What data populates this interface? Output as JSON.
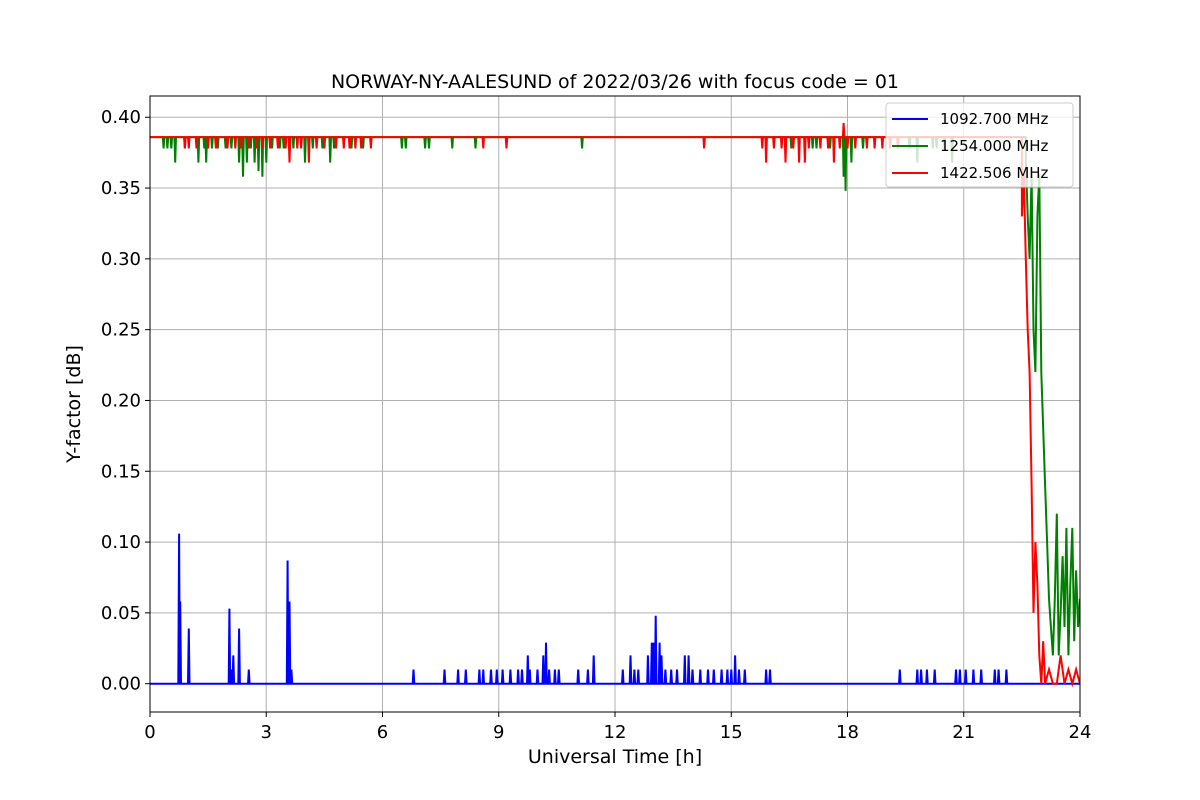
{
  "chart_data": {
    "type": "line",
    "title": "NORWAY-NY-AALESUND of 2022/03/26 with focus code = 01",
    "xlabel": "Universal Time [h]",
    "ylabel": "Y-factor [dB]",
    "xlim": [
      0,
      24
    ],
    "ylim": [
      -0.02,
      0.415
    ],
    "xticks": [
      0,
      3,
      6,
      9,
      12,
      15,
      18,
      21,
      24
    ],
    "xtick_labels": [
      "0",
      "3",
      "6",
      "9",
      "12",
      "15",
      "18",
      "21",
      "24"
    ],
    "yticks": [
      0.0,
      0.05,
      0.1,
      0.15,
      0.2,
      0.25,
      0.3,
      0.35,
      0.4
    ],
    "ytick_labels": [
      "0.00",
      "0.05",
      "0.10",
      "0.15",
      "0.20",
      "0.25",
      "0.30",
      "0.35",
      "0.40"
    ],
    "grid": true,
    "legend_position": "top-right",
    "series": [
      {
        "name": "1092.700 MHz",
        "color": "#0000ff",
        "baseline": 0.0,
        "spikes": [
          [
            0.75,
            0.106
          ],
          [
            0.78,
            0.058
          ],
          [
            1.0,
            0.039
          ],
          [
            2.05,
            0.053
          ],
          [
            2.1,
            0.01
          ],
          [
            2.15,
            0.02
          ],
          [
            2.3,
            0.039
          ],
          [
            2.55,
            0.01
          ],
          [
            3.55,
            0.087
          ],
          [
            3.6,
            0.058
          ],
          [
            3.65,
            0.01
          ],
          [
            6.8,
            0.01
          ],
          [
            7.6,
            0.01
          ],
          [
            7.95,
            0.01
          ],
          [
            8.15,
            0.01
          ],
          [
            8.5,
            0.01
          ],
          [
            8.6,
            0.01
          ],
          [
            8.8,
            0.01
          ],
          [
            8.95,
            0.01
          ],
          [
            9.1,
            0.01
          ],
          [
            9.3,
            0.01
          ],
          [
            9.5,
            0.01
          ],
          [
            9.6,
            0.01
          ],
          [
            9.75,
            0.02
          ],
          [
            9.8,
            0.01
          ],
          [
            10.0,
            0.01
          ],
          [
            10.15,
            0.02
          ],
          [
            10.22,
            0.029
          ],
          [
            10.3,
            0.01
          ],
          [
            10.45,
            0.01
          ],
          [
            10.55,
            0.01
          ],
          [
            11.05,
            0.01
          ],
          [
            11.3,
            0.01
          ],
          [
            11.45,
            0.02
          ],
          [
            12.2,
            0.01
          ],
          [
            12.4,
            0.02
          ],
          [
            12.5,
            0.01
          ],
          [
            12.6,
            0.01
          ],
          [
            12.85,
            0.02
          ],
          [
            12.95,
            0.029
          ],
          [
            13.0,
            0.029
          ],
          [
            13.05,
            0.048
          ],
          [
            13.15,
            0.029
          ],
          [
            13.2,
            0.02
          ],
          [
            13.3,
            0.01
          ],
          [
            13.45,
            0.01
          ],
          [
            13.6,
            0.01
          ],
          [
            13.8,
            0.02
          ],
          [
            13.9,
            0.02
          ],
          [
            14.0,
            0.01
          ],
          [
            14.2,
            0.01
          ],
          [
            14.4,
            0.01
          ],
          [
            14.55,
            0.01
          ],
          [
            14.75,
            0.01
          ],
          [
            14.9,
            0.01
          ],
          [
            15.0,
            0.01
          ],
          [
            15.1,
            0.02
          ],
          [
            15.2,
            0.01
          ],
          [
            15.35,
            0.01
          ],
          [
            15.9,
            0.01
          ],
          [
            16.0,
            0.01
          ],
          [
            19.35,
            0.01
          ],
          [
            19.8,
            0.01
          ],
          [
            19.9,
            0.01
          ],
          [
            20.05,
            0.01
          ],
          [
            20.25,
            0.01
          ],
          [
            20.8,
            0.01
          ],
          [
            20.9,
            0.01
          ],
          [
            21.05,
            0.01
          ],
          [
            21.25,
            0.01
          ],
          [
            21.45,
            0.01
          ],
          [
            21.8,
            0.01
          ],
          [
            21.9,
            0.01
          ],
          [
            22.1,
            0.01
          ]
        ],
        "noise": []
      },
      {
        "name": "1254.000 MHz",
        "color": "#008000",
        "baseline": 0.386,
        "spikes": [
          [
            0.35,
            0.378
          ],
          [
            0.45,
            0.378
          ],
          [
            0.55,
            0.378
          ],
          [
            0.65,
            0.368
          ],
          [
            0.9,
            0.378
          ],
          [
            1.25,
            0.368
          ],
          [
            1.4,
            0.378
          ],
          [
            1.45,
            0.368
          ],
          [
            1.6,
            0.378
          ],
          [
            1.75,
            0.378
          ],
          [
            1.95,
            0.378
          ],
          [
            2.1,
            0.378
          ],
          [
            2.3,
            0.368
          ],
          [
            2.4,
            0.358
          ],
          [
            2.5,
            0.368
          ],
          [
            2.6,
            0.378
          ],
          [
            2.7,
            0.368
          ],
          [
            2.8,
            0.362
          ],
          [
            2.9,
            0.358
          ],
          [
            3.0,
            0.368
          ],
          [
            3.15,
            0.378
          ],
          [
            3.35,
            0.378
          ],
          [
            3.45,
            0.378
          ],
          [
            3.7,
            0.378
          ],
          [
            4.0,
            0.368
          ],
          [
            4.2,
            0.378
          ],
          [
            4.45,
            0.378
          ],
          [
            4.65,
            0.368
          ],
          [
            4.75,
            0.378
          ],
          [
            5.2,
            0.378
          ],
          [
            5.5,
            0.378
          ],
          [
            6.5,
            0.378
          ],
          [
            6.6,
            0.378
          ],
          [
            7.1,
            0.378
          ],
          [
            7.2,
            0.378
          ],
          [
            7.8,
            0.378
          ],
          [
            8.4,
            0.378
          ],
          [
            11.15,
            0.378
          ],
          [
            16.55,
            0.378
          ],
          [
            17.1,
            0.378
          ],
          [
            17.2,
            0.378
          ],
          [
            17.55,
            0.378
          ],
          [
            17.9,
            0.358
          ],
          [
            17.95,
            0.348
          ],
          [
            18.1,
            0.368
          ],
          [
            18.4,
            0.378
          ],
          [
            19.6,
            0.378
          ],
          [
            19.8,
            0.368
          ],
          [
            20.2,
            0.378
          ],
          [
            20.3,
            0.378
          ],
          [
            20.5,
            0.378
          ],
          [
            20.7,
            0.368
          ]
        ],
        "noise": [
          [
            22.6,
            0.37
          ],
          [
            22.65,
            0.33
          ],
          [
            22.7,
            0.3
          ],
          [
            22.75,
            0.36
          ],
          [
            22.8,
            0.25
          ],
          [
            22.85,
            0.22
          ],
          [
            22.9,
            0.33
          ],
          [
            22.95,
            0.36
          ],
          [
            23.0,
            0.22
          ],
          [
            23.05,
            0.18
          ],
          [
            23.1,
            0.14
          ],
          [
            23.15,
            0.1
          ],
          [
            23.2,
            0.06
          ],
          [
            23.25,
            0.04
          ],
          [
            23.3,
            0.02
          ],
          [
            23.35,
            0.06
          ],
          [
            23.4,
            0.12
          ],
          [
            23.45,
            0.02
          ],
          [
            23.5,
            0.05
          ],
          [
            23.55,
            0.09
          ],
          [
            23.6,
            0.04
          ],
          [
            23.65,
            0.11
          ],
          [
            23.7,
            0.02
          ],
          [
            23.75,
            0.07
          ],
          [
            23.8,
            0.11
          ],
          [
            23.85,
            0.03
          ],
          [
            23.9,
            0.08
          ],
          [
            23.95,
            0.04
          ],
          [
            24.0,
            0.06
          ]
        ]
      },
      {
        "name": "1422.506 MHz",
        "color": "#ff0000",
        "baseline": 0.386,
        "spikes": [
          [
            0.9,
            0.378
          ],
          [
            1.0,
            0.378
          ],
          [
            1.2,
            0.378
          ],
          [
            1.5,
            0.378
          ],
          [
            1.7,
            0.378
          ],
          [
            2.0,
            0.378
          ],
          [
            2.2,
            0.378
          ],
          [
            2.35,
            0.378
          ],
          [
            2.55,
            0.378
          ],
          [
            2.75,
            0.378
          ],
          [
            2.9,
            0.378
          ],
          [
            3.1,
            0.378
          ],
          [
            3.3,
            0.378
          ],
          [
            3.5,
            0.378
          ],
          [
            3.6,
            0.368
          ],
          [
            3.8,
            0.378
          ],
          [
            3.9,
            0.378
          ],
          [
            4.1,
            0.368
          ],
          [
            4.3,
            0.378
          ],
          [
            4.5,
            0.378
          ],
          [
            4.8,
            0.378
          ],
          [
            5.0,
            0.378
          ],
          [
            5.15,
            0.378
          ],
          [
            5.3,
            0.378
          ],
          [
            5.45,
            0.378
          ],
          [
            5.7,
            0.378
          ],
          [
            8.6,
            0.378
          ],
          [
            9.2,
            0.378
          ],
          [
            14.3,
            0.378
          ],
          [
            15.8,
            0.378
          ],
          [
            15.9,
            0.368
          ],
          [
            16.1,
            0.378
          ],
          [
            16.3,
            0.378
          ],
          [
            16.4,
            0.368
          ],
          [
            16.6,
            0.378
          ],
          [
            16.75,
            0.368
          ],
          [
            16.9,
            0.368
          ],
          [
            17.0,
            0.378
          ],
          [
            17.3,
            0.378
          ],
          [
            17.5,
            0.378
          ],
          [
            17.65,
            0.368
          ],
          [
            17.8,
            0.378
          ],
          [
            17.9,
            0.396
          ],
          [
            18.0,
            0.378
          ],
          [
            18.2,
            0.378
          ],
          [
            18.5,
            0.378
          ],
          [
            18.7,
            0.378
          ],
          [
            18.9,
            0.378
          ],
          [
            19.1,
            0.378
          ],
          [
            19.3,
            0.378
          ]
        ],
        "noise": [
          [
            22.5,
            0.33
          ],
          [
            22.55,
            0.36
          ],
          [
            22.6,
            0.3
          ],
          [
            22.65,
            0.25
          ],
          [
            22.7,
            0.22
          ],
          [
            22.75,
            0.14
          ],
          [
            22.8,
            0.05
          ],
          [
            22.85,
            0.1
          ],
          [
            22.9,
            0.07
          ],
          [
            22.95,
            0.02
          ],
          [
            23.0,
            0.0
          ],
          [
            23.05,
            0.03
          ],
          [
            23.1,
            0.0
          ],
          [
            23.2,
            0.01
          ],
          [
            23.3,
            0.0
          ],
          [
            23.4,
            0.0
          ],
          [
            23.5,
            0.02
          ],
          [
            23.6,
            0.0
          ],
          [
            23.7,
            0.01
          ],
          [
            23.8,
            0.0
          ],
          [
            23.9,
            0.01
          ],
          [
            24.0,
            0.0
          ]
        ]
      }
    ]
  }
}
